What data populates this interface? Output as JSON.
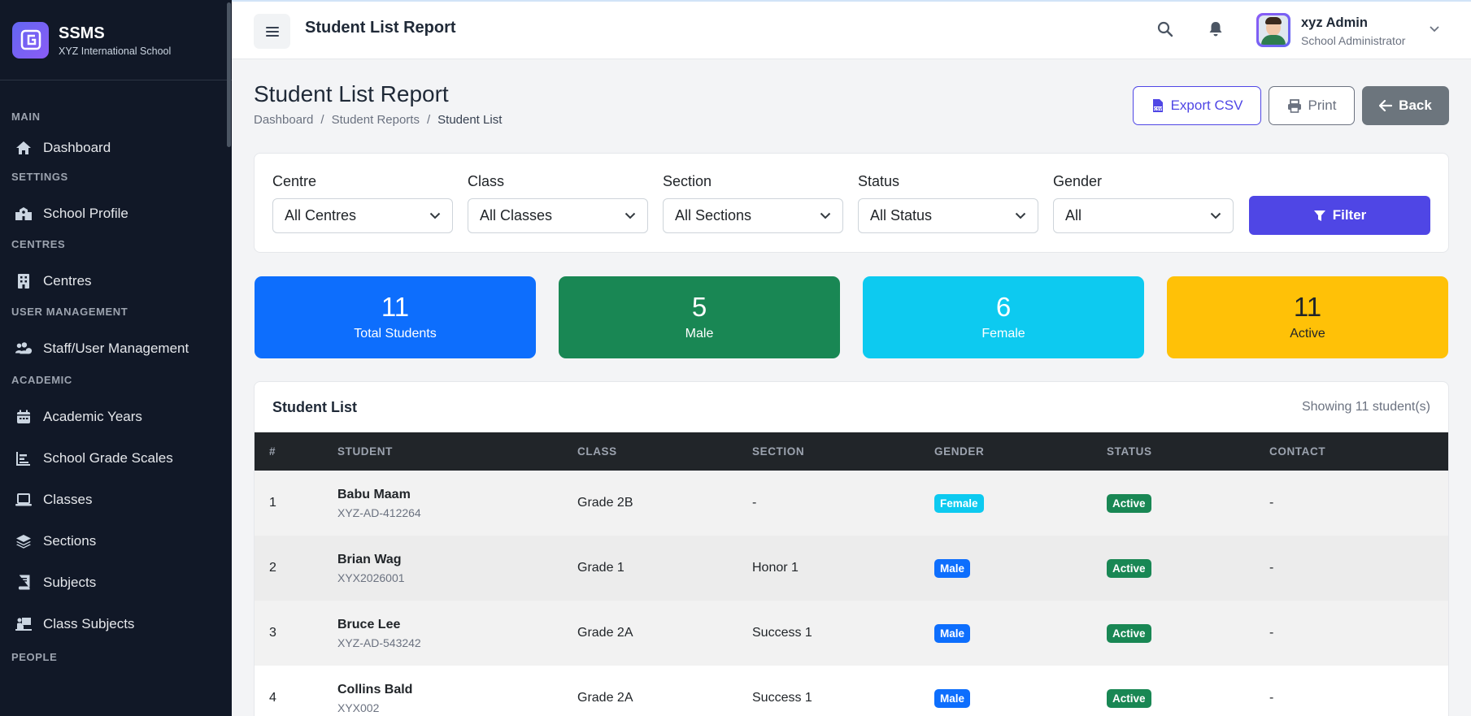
{
  "brand": {
    "name": "SSMS",
    "subtitle": "XYZ International School"
  },
  "sidebar": {
    "sections": [
      {
        "label": "MAIN",
        "items": [
          {
            "label": "Dashboard",
            "icon": "home-icon"
          }
        ]
      },
      {
        "label": "SETTINGS",
        "items": [
          {
            "label": "School Profile",
            "icon": "school-icon"
          }
        ]
      },
      {
        "label": "CENTRES",
        "items": [
          {
            "label": "Centres",
            "icon": "building-icon"
          }
        ]
      },
      {
        "label": "USER MANAGEMENT",
        "items": [
          {
            "label": "Staff/User Management",
            "icon": "users-icon"
          }
        ]
      },
      {
        "label": "ACADEMIC",
        "items": [
          {
            "label": "Academic Years",
            "icon": "calendar-icon"
          },
          {
            "label": "School Grade Scales",
            "icon": "chart-icon"
          },
          {
            "label": "Classes",
            "icon": "laptop-icon"
          },
          {
            "label": "Sections",
            "icon": "layers-icon"
          },
          {
            "label": "Subjects",
            "icon": "book-icon"
          },
          {
            "label": "Class Subjects",
            "icon": "chalkboard-icon"
          }
        ]
      },
      {
        "label": "PEOPLE",
        "items": []
      }
    ]
  },
  "topbar": {
    "title": "Student List Report",
    "user_name": "xyz Admin",
    "user_role": "School Administrator"
  },
  "page": {
    "title": "Student List Report",
    "breadcrumbs": [
      "Dashboard",
      "Student Reports",
      "Student List"
    ],
    "buttons": {
      "export": "Export CSV",
      "print": "Print",
      "back": "Back"
    }
  },
  "filters": {
    "centre": {
      "label": "Centre",
      "value": "All Centres"
    },
    "class": {
      "label": "Class",
      "value": "All Classes"
    },
    "section": {
      "label": "Section",
      "value": "All Sections"
    },
    "status": {
      "label": "Status",
      "value": "All Status"
    },
    "gender": {
      "label": "Gender",
      "value": "All"
    },
    "submit": "Filter"
  },
  "stats": [
    {
      "value": "11",
      "label": "Total Students",
      "color": "#0d6efd"
    },
    {
      "value": "5",
      "label": "Male",
      "color": "#198754"
    },
    {
      "value": "6",
      "label": "Female",
      "color": "#0dcaf0"
    },
    {
      "value": "11",
      "label": "Active",
      "color": "#ffc107"
    }
  ],
  "student_list": {
    "title": "Student List",
    "showing": "Showing 11 student(s)",
    "columns": [
      "#",
      "STUDENT",
      "CLASS",
      "SECTION",
      "GENDER",
      "STATUS",
      "CONTACT"
    ],
    "rows": [
      {
        "num": "1",
        "name": "Babu Maam",
        "id": "XYZ-AD-412264",
        "class": "Grade 2B",
        "section": "-",
        "gender": "Female",
        "status": "Active",
        "contact": "-"
      },
      {
        "num": "2",
        "name": "Brian Wag",
        "id": "XYX2026001",
        "class": "Grade 1",
        "section": "Honor 1",
        "gender": "Male",
        "status": "Active",
        "contact": "-"
      },
      {
        "num": "3",
        "name": "Bruce Lee",
        "id": "XYZ-AD-543242",
        "class": "Grade 2A",
        "section": "Success 1",
        "gender": "Male",
        "status": "Active",
        "contact": "-"
      },
      {
        "num": "4",
        "name": "Collins Bald",
        "id": "XYX002",
        "class": "Grade 2A",
        "section": "Success 1",
        "gender": "Male",
        "status": "Active",
        "contact": "-"
      }
    ]
  },
  "colors": {
    "sidebar": "#111827",
    "accent": "#4f46e5",
    "male_badge": "#0d6efd",
    "female_badge": "#0dcaf0",
    "active_badge": "#198754"
  }
}
